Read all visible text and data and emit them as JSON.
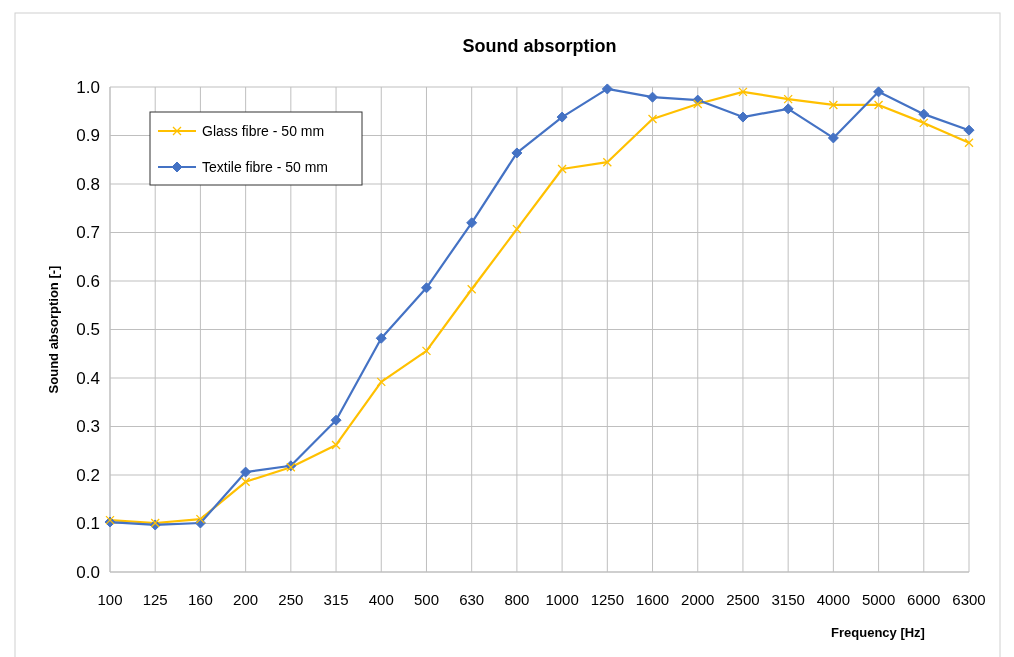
{
  "chart_data": {
    "type": "line",
    "title": "Sound absorption",
    "xlabel": "Frequency [Hz]",
    "ylabel": "Sound absorption [-]",
    "categories": [
      "100",
      "125",
      "160",
      "200",
      "250",
      "315",
      "400",
      "500",
      "630",
      "800",
      "1000",
      "1250",
      "1600",
      "2000",
      "2500",
      "3150",
      "4000",
      "5000",
      "6000",
      "6300"
    ],
    "series": [
      {
        "name": "Glass fibre - 50 mm",
        "color": "#ffc000",
        "marker": "cross",
        "values": [
          0.107,
          0.101,
          0.109,
          0.186,
          0.216,
          0.262,
          0.392,
          0.456,
          0.583,
          0.707,
          0.831,
          0.845,
          0.934,
          0.965,
          0.99,
          0.975,
          0.963,
          0.963,
          0.926,
          0.885
        ]
      },
      {
        "name": "Textile fibre - 50 mm",
        "color": "#4472c4",
        "marker": "diamond",
        "values": [
          0.103,
          0.097,
          0.101,
          0.206,
          0.219,
          0.313,
          0.482,
          0.586,
          0.72,
          0.864,
          0.938,
          0.996,
          0.979,
          0.973,
          0.938,
          0.955,
          0.895,
          0.99,
          0.944,
          0.911
        ]
      }
    ],
    "ylim": [
      0,
      1
    ],
    "yticks": [
      {
        "value": 0,
        "label": "0.0"
      },
      0.1,
      0.2,
      0.3,
      0.4,
      0.5,
      0.6,
      0.7,
      0.8,
      0.9,
      {
        "value": 1,
        "label": "1.0"
      }
    ],
    "grid": true,
    "legend": "top left",
    "line_style": "solid"
  }
}
